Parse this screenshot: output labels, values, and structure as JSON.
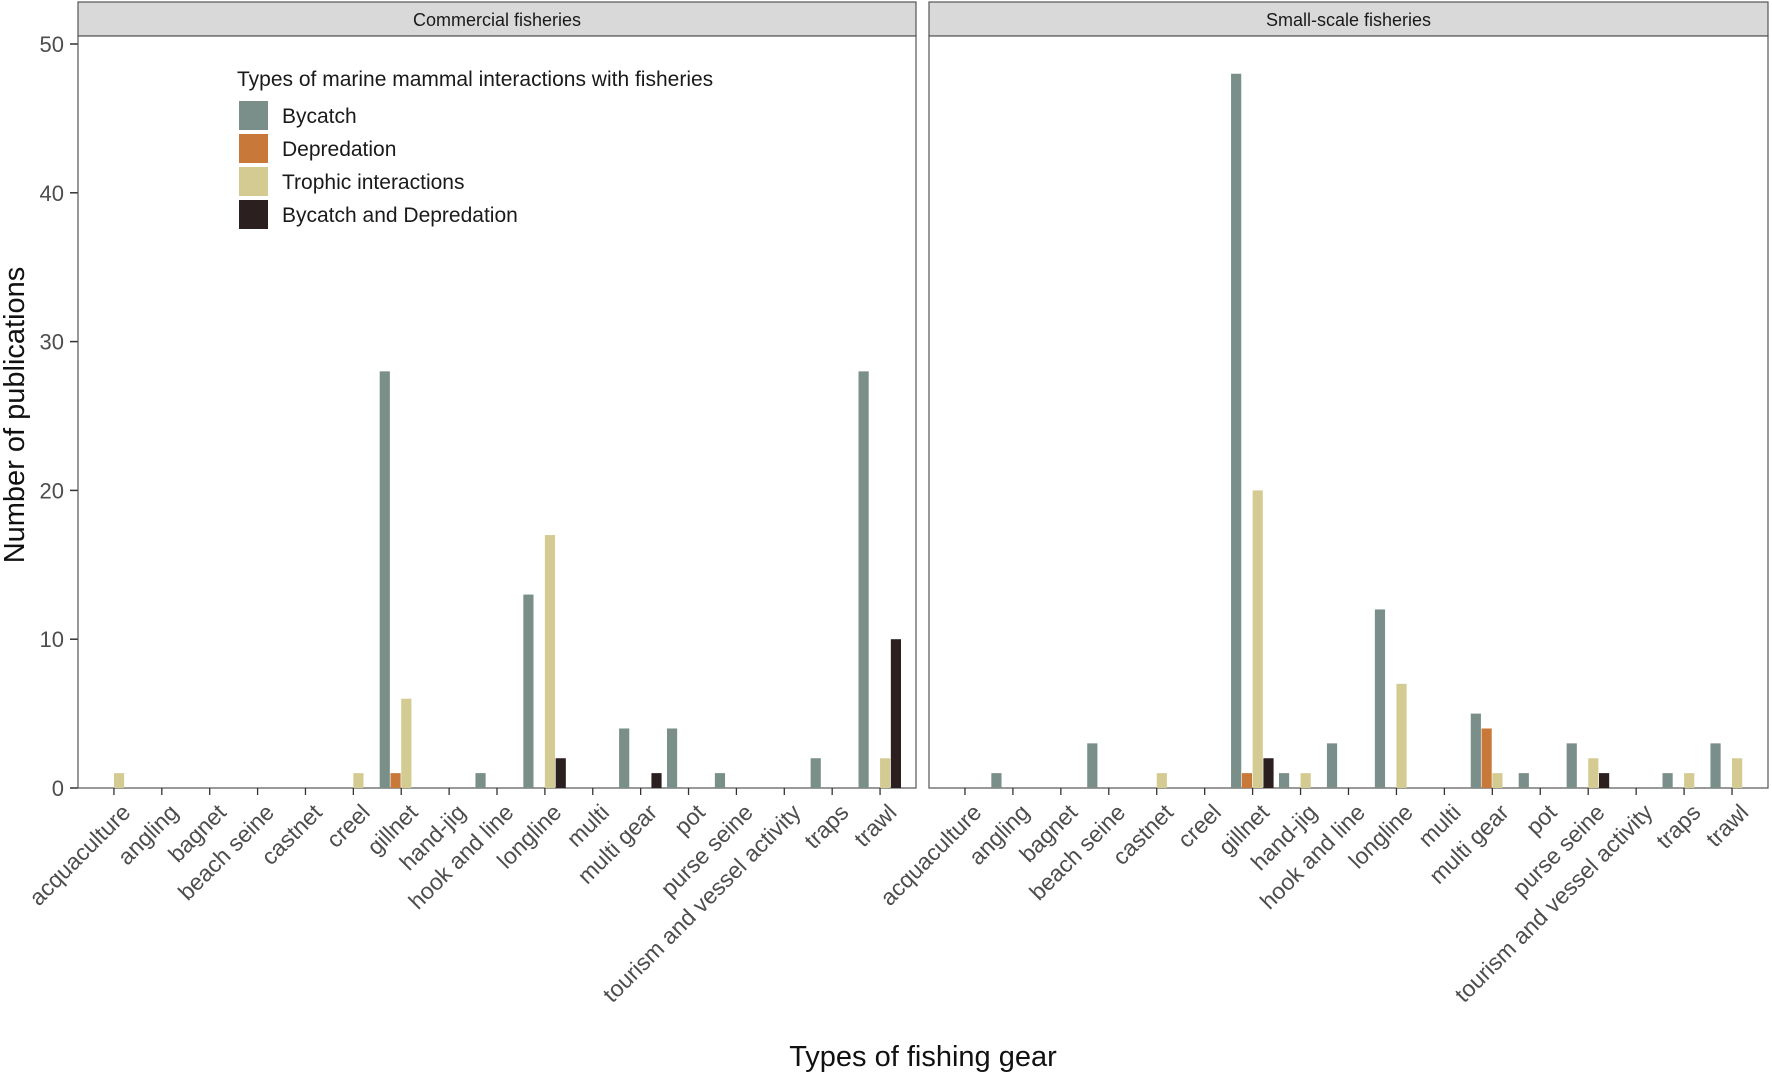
{
  "chart_data": {
    "type": "bar",
    "xlabel": "Types of fishing gear",
    "ylabel": "Number of publications",
    "ylim": [
      0,
      50
    ],
    "yticks": [
      0,
      10,
      20,
      30,
      40,
      50
    ],
    "categories": [
      "acquaculture",
      "angling",
      "bagnet",
      "beach seine",
      "castnet",
      "creel",
      "gillnet",
      "hand-jig",
      "hook and line",
      "longline",
      "multi",
      "multi gear",
      "pot",
      "purse seine",
      "tourism and vessel activity",
      "traps",
      "trawl"
    ],
    "legend": {
      "title": "Types of marine mammal interactions with fisheries",
      "position": "top-left"
    },
    "series": [
      {
        "name": "Bycatch",
        "color": "#7a8f8a"
      },
      {
        "name": "Depredation",
        "color": "#c8793a"
      },
      {
        "name": "Trophic interactions",
        "color": "#d4cb92"
      },
      {
        "name": "Bycatch and Depredation",
        "color": "#2b1f20"
      }
    ],
    "panels": [
      {
        "title": "Commercial fisheries",
        "values": {
          "Bycatch": [
            0,
            0,
            0,
            0,
            0,
            0,
            28,
            0,
            1,
            13,
            0,
            4,
            4,
            1,
            0,
            2,
            28
          ],
          "Depredation": [
            0,
            0,
            0,
            0,
            0,
            0,
            1,
            0,
            0,
            0,
            0,
            0,
            0,
            0,
            0,
            0,
            0
          ],
          "Trophic interactions": [
            1,
            0,
            0,
            0,
            0,
            1,
            6,
            0,
            0,
            17,
            0,
            0,
            0,
            0,
            0,
            0,
            2
          ],
          "Bycatch and Depredation": [
            0,
            0,
            0,
            0,
            0,
            0,
            0,
            0,
            0,
            2,
            0,
            1,
            0,
            0,
            0,
            0,
            10
          ]
        }
      },
      {
        "title": "Small-scale fisheries",
        "values": {
          "Bycatch": [
            0,
            1,
            0,
            3,
            0,
            0,
            48,
            1,
            3,
            12,
            0,
            5,
            1,
            3,
            0,
            1,
            3
          ],
          "Depredation": [
            0,
            0,
            0,
            0,
            0,
            0,
            1,
            0,
            0,
            0,
            0,
            4,
            0,
            0,
            0,
            0,
            0
          ],
          "Trophic interactions": [
            0,
            0,
            0,
            0,
            1,
            0,
            20,
            1,
            0,
            7,
            0,
            1,
            0,
            2,
            0,
            1,
            2
          ],
          "Bycatch and Depredation": [
            0,
            0,
            0,
            0,
            0,
            0,
            2,
            0,
            0,
            0,
            0,
            0,
            0,
            1,
            0,
            0,
            0
          ]
        }
      }
    ]
  }
}
